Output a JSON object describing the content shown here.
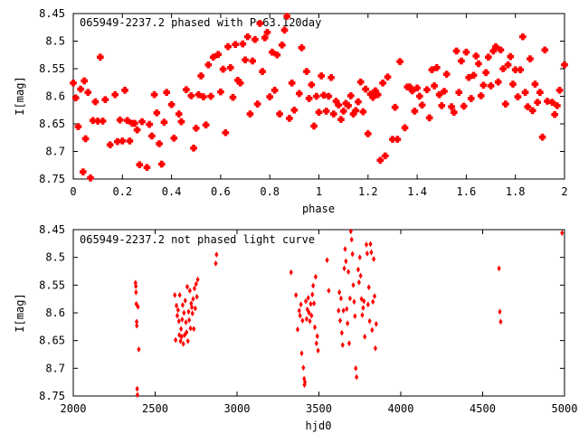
{
  "chart_data": [
    {
      "type": "scatter",
      "title": "065949-2237.2 phased with P=63.120day",
      "xlabel": "phase",
      "ylabel": "I[mag]",
      "xlim": [
        0,
        2
      ],
      "ylim": [
        8.45,
        8.75
      ],
      "y_inverted": true,
      "x_ticks": [
        "0",
        "0.2",
        "0.4",
        "0.6",
        "0.8",
        "1",
        "1.2",
        "1.4",
        "1.6",
        "1.8",
        "2"
      ],
      "y_ticks": [
        "8.45",
        "8.5",
        "8.55",
        "8.6",
        "8.65",
        "8.7",
        "8.75"
      ],
      "grid": false,
      "marker_color": "#ff0000",
      "points": [
        [
          0.0,
          8.576
        ],
        [
          0.01,
          8.603
        ],
        [
          0.02,
          8.655
        ],
        [
          0.03,
          8.587
        ],
        [
          0.04,
          8.737
        ],
        [
          0.045,
          8.572
        ],
        [
          0.05,
          8.677
        ],
        [
          0.06,
          8.593
        ],
        [
          0.07,
          8.748
        ],
        [
          0.08,
          8.644
        ],
        [
          0.09,
          8.61
        ],
        [
          0.1,
          8.645
        ],
        [
          0.11,
          8.529
        ],
        [
          0.12,
          8.645
        ],
        [
          0.13,
          8.606
        ],
        [
          0.15,
          8.688
        ],
        [
          0.17,
          8.597
        ],
        [
          0.18,
          8.682
        ],
        [
          0.19,
          8.643
        ],
        [
          0.2,
          8.681
        ],
        [
          0.21,
          8.589
        ],
        [
          0.22,
          8.644
        ],
        [
          0.23,
          8.681
        ],
        [
          0.24,
          8.649
        ],
        [
          0.25,
          8.649
        ],
        [
          0.26,
          8.661
        ],
        [
          0.27,
          8.724
        ],
        [
          0.28,
          8.646
        ],
        [
          0.3,
          8.729
        ],
        [
          0.31,
          8.651
        ],
        [
          0.32,
          8.672
        ],
        [
          0.33,
          8.597
        ],
        [
          0.34,
          8.63
        ],
        [
          0.35,
          8.686
        ],
        [
          0.36,
          8.723
        ],
        [
          0.37,
          8.647
        ],
        [
          0.38,
          8.593
        ],
        [
          0.4,
          8.615
        ],
        [
          0.41,
          8.676
        ],
        [
          0.43,
          8.632
        ],
        [
          0.44,
          8.646
        ],
        [
          0.46,
          8.588
        ],
        [
          0.48,
          8.599
        ],
        [
          0.49,
          8.694
        ],
        [
          0.5,
          8.658
        ],
        [
          0.51,
          8.597
        ],
        [
          0.52,
          8.563
        ],
        [
          0.53,
          8.601
        ],
        [
          0.54,
          8.652
        ],
        [
          0.55,
          8.543
        ],
        [
          0.56,
          8.6
        ],
        [
          0.57,
          8.529
        ],
        [
          0.59,
          8.524
        ],
        [
          0.6,
          8.592
        ],
        [
          0.61,
          8.551
        ],
        [
          0.62,
          8.666
        ],
        [
          0.63,
          8.51
        ],
        [
          0.64,
          8.548
        ],
        [
          0.65,
          8.602
        ],
        [
          0.66,
          8.506
        ],
        [
          0.67,
          8.571
        ],
        [
          0.68,
          8.576
        ],
        [
          0.69,
          8.505
        ],
        [
          0.7,
          8.534
        ],
        [
          0.71,
          8.492
        ],
        [
          0.72,
          8.632
        ],
        [
          0.73,
          8.536
        ],
        [
          0.74,
          8.497
        ],
        [
          0.75,
          8.614
        ],
        [
          0.76,
          8.468
        ],
        [
          0.77,
          8.555
        ],
        [
          0.78,
          8.494
        ],
        [
          0.79,
          8.484
        ],
        [
          0.8,
          8.601
        ],
        [
          0.81,
          8.52
        ],
        [
          0.82,
          8.589
        ],
        [
          0.83,
          8.525
        ],
        [
          0.84,
          8.632
        ],
        [
          0.85,
          8.507
        ],
        [
          0.86,
          8.48
        ],
        [
          0.87,
          8.455
        ],
        [
          0.88,
          8.64
        ],
        [
          0.89,
          8.576
        ],
        [
          0.9,
          8.625
        ],
        [
          0.92,
          8.595
        ],
        [
          0.93,
          8.512
        ],
        [
          0.95,
          8.555
        ],
        [
          0.96,
          8.604
        ],
        [
          0.97,
          8.579
        ],
        [
          0.98,
          8.654
        ],
        [
          0.99,
          8.6
        ],
        [
          1.0,
          8.629
        ],
        [
          1.01,
          8.563
        ],
        [
          1.02,
          8.598
        ],
        [
          1.03,
          8.627
        ],
        [
          1.04,
          8.6
        ],
        [
          1.05,
          8.566
        ],
        [
          1.06,
          8.632
        ],
        [
          1.07,
          8.609
        ],
        [
          1.08,
          8.616
        ],
        [
          1.09,
          8.642
        ],
        [
          1.1,
          8.627
        ],
        [
          1.11,
          8.613
        ],
        [
          1.12,
          8.617
        ],
        [
          1.13,
          8.599
        ],
        [
          1.14,
          8.632
        ],
        [
          1.15,
          8.626
        ],
        [
          1.16,
          8.61
        ],
        [
          1.17,
          8.574
        ],
        [
          1.18,
          8.628
        ],
        [
          1.19,
          8.587
        ],
        [
          1.2,
          8.668
        ],
        [
          1.21,
          8.596
        ],
        [
          1.22,
          8.602
        ],
        [
          1.23,
          8.59
        ],
        [
          1.24,
          8.597
        ],
        [
          1.25,
          8.716
        ],
        [
          1.26,
          8.576
        ],
        [
          1.27,
          8.708
        ],
        [
          1.28,
          8.565
        ],
        [
          1.3,
          8.678
        ],
        [
          1.31,
          8.62
        ],
        [
          1.32,
          8.678
        ],
        [
          1.33,
          8.537
        ],
        [
          1.35,
          8.657
        ],
        [
          1.36,
          8.583
        ],
        [
          1.37,
          8.583
        ],
        [
          1.38,
          8.59
        ],
        [
          1.39,
          8.627
        ],
        [
          1.4,
          8.585
        ],
        [
          1.41,
          8.6
        ],
        [
          1.42,
          8.616
        ],
        [
          1.44,
          8.588
        ],
        [
          1.45,
          8.639
        ],
        [
          1.46,
          8.552
        ],
        [
          1.47,
          8.581
        ],
        [
          1.48,
          8.548
        ],
        [
          1.49,
          8.597
        ],
        [
          1.5,
          8.617
        ],
        [
          1.51,
          8.591
        ],
        [
          1.52,
          8.56
        ],
        [
          1.54,
          8.619
        ],
        [
          1.55,
          8.629
        ],
        [
          1.56,
          8.518
        ],
        [
          1.57,
          8.593
        ],
        [
          1.58,
          8.536
        ],
        [
          1.59,
          8.618
        ],
        [
          1.6,
          8.52
        ],
        [
          1.61,
          8.566
        ],
        [
          1.62,
          8.604
        ],
        [
          1.63,
          8.562
        ],
        [
          1.64,
          8.527
        ],
        [
          1.65,
          8.541
        ],
        [
          1.66,
          8.599
        ],
        [
          1.67,
          8.58
        ],
        [
          1.68,
          8.557
        ],
        [
          1.69,
          8.529
        ],
        [
          1.7,
          8.581
        ],
        [
          1.71,
          8.518
        ],
        [
          1.72,
          8.51
        ],
        [
          1.73,
          8.574
        ],
        [
          1.74,
          8.516
        ],
        [
          1.75,
          8.55
        ],
        [
          1.76,
          8.614
        ],
        [
          1.77,
          8.543
        ],
        [
          1.78,
          8.528
        ],
        [
          1.79,
          8.578
        ],
        [
          1.8,
          8.552
        ],
        [
          1.81,
          8.601
        ],
        [
          1.82,
          8.552
        ],
        [
          1.83,
          8.492
        ],
        [
          1.84,
          8.593
        ],
        [
          1.85,
          8.619
        ],
        [
          1.86,
          8.532
        ],
        [
          1.87,
          8.626
        ],
        [
          1.88,
          8.578
        ],
        [
          1.89,
          8.611
        ],
        [
          1.9,
          8.593
        ],
        [
          1.91,
          8.674
        ],
        [
          1.92,
          8.516
        ],
        [
          1.93,
          8.609
        ],
        [
          1.95,
          8.611
        ],
        [
          1.96,
          8.633
        ],
        [
          1.97,
          8.617
        ],
        [
          1.98,
          8.589
        ],
        [
          2.0,
          8.543
        ]
      ]
    },
    {
      "type": "scatter",
      "title": "065949-2237.2 not phased light curve",
      "xlabel": "hjd0",
      "ylabel": "I[mag]",
      "xlim": [
        2000,
        5000
      ],
      "ylim": [
        8.45,
        8.75
      ],
      "y_inverted": true,
      "x_ticks": [
        "2000",
        "2500",
        "3000",
        "3500",
        "4000",
        "4500",
        "5000"
      ],
      "y_ticks": [
        "8.45",
        "8.5",
        "8.55",
        "8.6",
        "8.65",
        "8.7",
        "8.75"
      ],
      "grid": false,
      "marker_color": "#ff0000",
      "points": [
        [
          2380,
          8.546
        ],
        [
          2382,
          8.552
        ],
        [
          2383,
          8.563
        ],
        [
          2385,
          8.584
        ],
        [
          2387,
          8.616
        ],
        [
          2388,
          8.623
        ],
        [
          2390,
          8.737
        ],
        [
          2392,
          8.748
        ],
        [
          2395,
          8.589
        ],
        [
          2400,
          8.666
        ],
        [
          2620,
          8.568
        ],
        [
          2625,
          8.649
        ],
        [
          2630,
          8.587
        ],
        [
          2635,
          8.605
        ],
        [
          2640,
          8.595
        ],
        [
          2645,
          8.615
        ],
        [
          2648,
          8.64
        ],
        [
          2650,
          8.568
        ],
        [
          2655,
          8.651
        ],
        [
          2658,
          8.629
        ],
        [
          2662,
          8.643
        ],
        [
          2665,
          8.612
        ],
        [
          2668,
          8.586
        ],
        [
          2672,
          8.656
        ],
        [
          2676,
          8.6
        ],
        [
          2680,
          8.64
        ],
        [
          2684,
          8.578
        ],
        [
          2688,
          8.617
        ],
        [
          2692,
          8.635
        ],
        [
          2696,
          8.553
        ],
        [
          2700,
          8.651
        ],
        [
          2704,
          8.598
        ],
        [
          2708,
          8.613
        ],
        [
          2712,
          8.56
        ],
        [
          2716,
          8.628
        ],
        [
          2720,
          8.583
        ],
        [
          2724,
          8.59
        ],
        [
          2728,
          8.601
        ],
        [
          2732,
          8.575
        ],
        [
          2736,
          8.629
        ],
        [
          2740,
          8.556
        ],
        [
          2745,
          8.592
        ],
        [
          2750,
          8.548
        ],
        [
          2755,
          8.571
        ],
        [
          2760,
          8.54
        ],
        [
          2870,
          8.511
        ],
        [
          2875,
          8.495
        ],
        [
          3330,
          8.527
        ],
        [
          3360,
          8.568
        ],
        [
          3370,
          8.63
        ],
        [
          3380,
          8.596
        ],
        [
          3385,
          8.605
        ],
        [
          3390,
          8.585
        ],
        [
          3395,
          8.673
        ],
        [
          3400,
          8.614
        ],
        [
          3405,
          8.699
        ],
        [
          3410,
          8.719
        ],
        [
          3412,
          8.73
        ],
        [
          3415,
          8.725
        ],
        [
          3420,
          8.579
        ],
        [
          3425,
          8.611
        ],
        [
          3430,
          8.594
        ],
        [
          3435,
          8.573
        ],
        [
          3440,
          8.6
        ],
        [
          3445,
          8.615
        ],
        [
          3450,
          8.584
        ],
        [
          3455,
          8.605
        ],
        [
          3460,
          8.567
        ],
        [
          3465,
          8.551
        ],
        [
          3470,
          8.583
        ],
        [
          3475,
          8.626
        ],
        [
          3480,
          8.535
        ],
        [
          3485,
          8.655
        ],
        [
          3490,
          8.642
        ],
        [
          3495,
          8.668
        ],
        [
          3550,
          8.505
        ],
        [
          3560,
          8.56
        ],
        [
          3620,
          8.596
        ],
        [
          3625,
          8.563
        ],
        [
          3630,
          8.614
        ],
        [
          3635,
          8.574
        ],
        [
          3640,
          8.636
        ],
        [
          3645,
          8.658
        ],
        [
          3650,
          8.596
        ],
        [
          3655,
          8.52
        ],
        [
          3660,
          8.485
        ],
        [
          3665,
          8.507
        ],
        [
          3670,
          8.593
        ],
        [
          3675,
          8.619
        ],
        [
          3680,
          8.526
        ],
        [
          3685,
          8.655
        ],
        [
          3690,
          8.574
        ],
        [
          3695,
          8.453
        ],
        [
          3700,
          8.468
        ],
        [
          3705,
          8.494
        ],
        [
          3710,
          8.55
        ],
        [
          3715,
          8.58
        ],
        [
          3720,
          8.606
        ],
        [
          3725,
          8.7
        ],
        [
          3730,
          8.716
        ],
        [
          3740,
          8.522
        ],
        [
          3745,
          8.545
        ],
        [
          3750,
          8.5
        ],
        [
          3755,
          8.533
        ],
        [
          3760,
          8.575
        ],
        [
          3765,
          8.604
        ],
        [
          3770,
          8.591
        ],
        [
          3775,
          8.579
        ],
        [
          3780,
          8.643
        ],
        [
          3790,
          8.477
        ],
        [
          3795,
          8.493
        ],
        [
          3800,
          8.585
        ],
        [
          3805,
          8.554
        ],
        [
          3810,
          8.615
        ],
        [
          3815,
          8.476
        ],
        [
          3820,
          8.491
        ],
        [
          3825,
          8.631
        ],
        [
          3830,
          8.58
        ],
        [
          3835,
          8.503
        ],
        [
          3840,
          8.57
        ],
        [
          3845,
          8.664
        ],
        [
          3850,
          8.62
        ],
        [
          4600,
          8.52
        ],
        [
          4605,
          8.598
        ],
        [
          4610,
          8.616
        ],
        [
          4985,
          8.456
        ]
      ]
    }
  ]
}
